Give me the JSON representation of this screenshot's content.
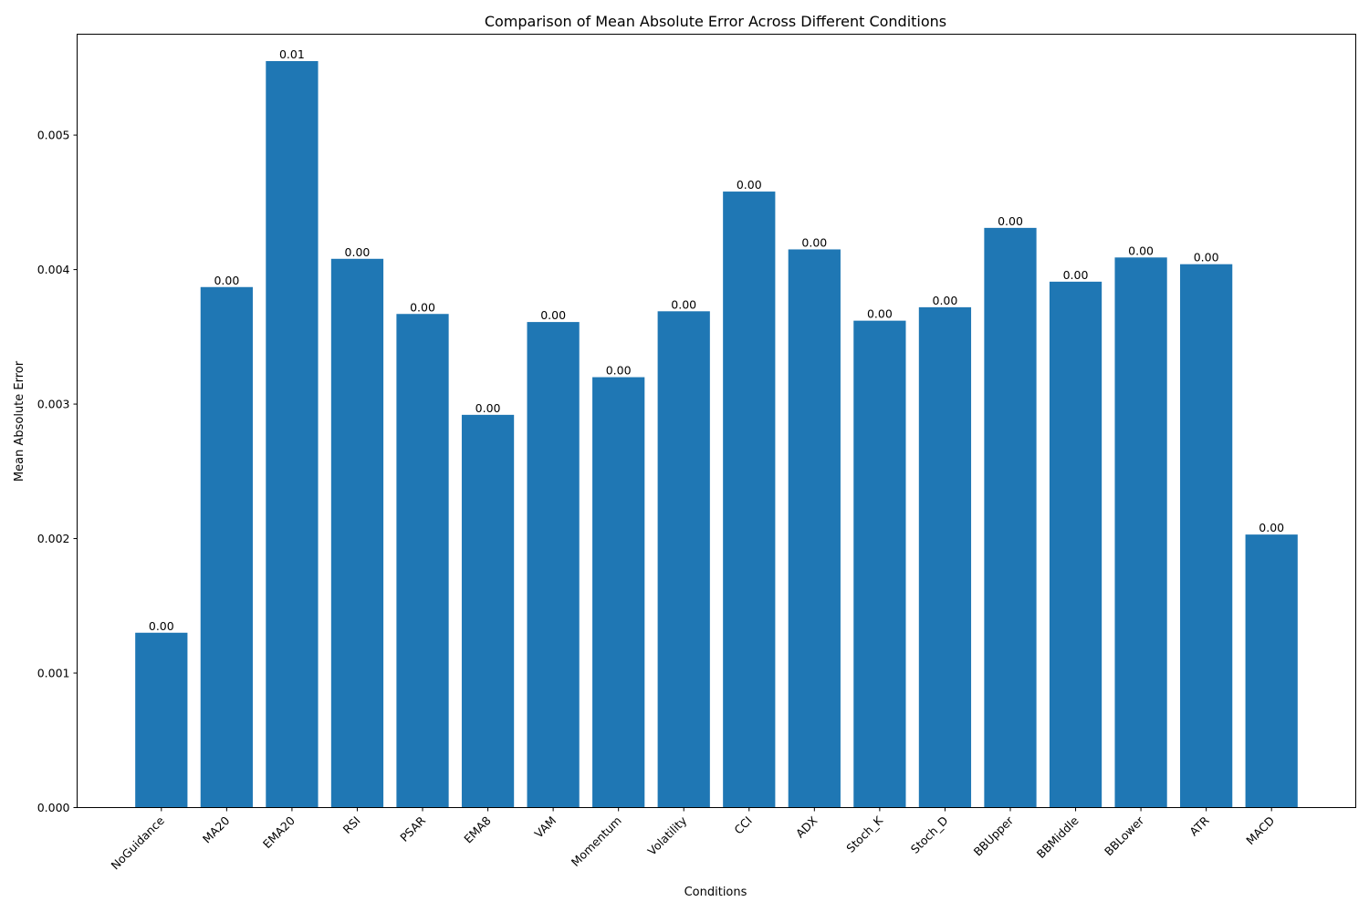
{
  "chart_data": {
    "type": "bar",
    "title": "Comparison of Mean Absolute Error Across Different Conditions",
    "xlabel": "Conditions",
    "ylabel": "Mean Absolute Error",
    "ylim": [
      0,
      0.00575
    ],
    "yticks": [
      "0.000",
      "0.001",
      "0.002",
      "0.003",
      "0.004",
      "0.005"
    ],
    "ytick_values": [
      0,
      0.001,
      0.002,
      0.003,
      0.004,
      0.005
    ],
    "grid": false,
    "bar_color": "#1f77b4",
    "categories": [
      "NoGuidance",
      "MA20",
      "EMA20",
      "RSI",
      "PSAR",
      "EMA8",
      "VAM",
      "Momentum",
      "Volatility",
      "CCI",
      "ADX",
      "Stoch_K",
      "Stoch_D",
      "BBUpper",
      "BBMiddle",
      "BBLower",
      "ATR",
      "MACD"
    ],
    "values": [
      0.0013,
      0.00387,
      0.00555,
      0.00408,
      0.00367,
      0.00292,
      0.00361,
      0.0032,
      0.00369,
      0.00458,
      0.00415,
      0.00362,
      0.00372,
      0.00431,
      0.00391,
      0.00409,
      0.00404,
      0.00203
    ],
    "data_labels": [
      "0.00",
      "0.00",
      "0.01",
      "0.00",
      "0.00",
      "0.00",
      "0.00",
      "0.00",
      "0.00",
      "0.00",
      "0.00",
      "0.00",
      "0.00",
      "0.00",
      "0.00",
      "0.00",
      "0.00",
      "0.00"
    ]
  }
}
